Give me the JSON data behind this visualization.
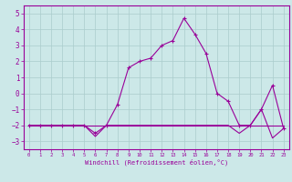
{
  "xlabel": "Windchill (Refroidissement éolien,°C)",
  "x_values": [
    0,
    1,
    2,
    3,
    4,
    5,
    6,
    7,
    8,
    9,
    10,
    11,
    12,
    13,
    14,
    15,
    16,
    17,
    18,
    19,
    20,
    21,
    22,
    23
  ],
  "line1_y": [
    -2,
    -2,
    -2,
    -2,
    -2,
    -2,
    -2.5,
    -2,
    -0.7,
    1.6,
    2.0,
    2.2,
    3.0,
    3.3,
    4.7,
    3.7,
    2.5,
    0.0,
    -0.5,
    -2.0,
    -2.0,
    -1.0,
    0.5,
    -2.2
  ],
  "line2_y": [
    -2,
    -2,
    -2,
    -2,
    -2,
    -2,
    -2,
    -2,
    -2,
    -2,
    -2,
    -2,
    -2,
    -2,
    -2,
    -2,
    -2,
    -2,
    -2,
    -2,
    -2,
    -2,
    -2,
    -2
  ],
  "line3_y": [
    -2,
    -2,
    -2,
    -2,
    -2,
    -2,
    -2.7,
    -2,
    -2,
    -2,
    -2,
    -2,
    -2,
    -2,
    -2,
    -2,
    -2,
    -2,
    -2,
    -2.5,
    -2,
    -1,
    -2.8,
    -2.2
  ],
  "line_color": "#990099",
  "bg_color": "#cce8e8",
  "grid_color": "#aacccc",
  "ylim": [
    -3.5,
    5.5
  ],
  "yticks": [
    -3,
    -2,
    -1,
    0,
    1,
    2,
    3,
    4,
    5
  ],
  "xticks": [
    0,
    1,
    2,
    3,
    4,
    5,
    6,
    7,
    8,
    9,
    10,
    11,
    12,
    13,
    14,
    15,
    16,
    17,
    18,
    19,
    20,
    21,
    22,
    23
  ]
}
